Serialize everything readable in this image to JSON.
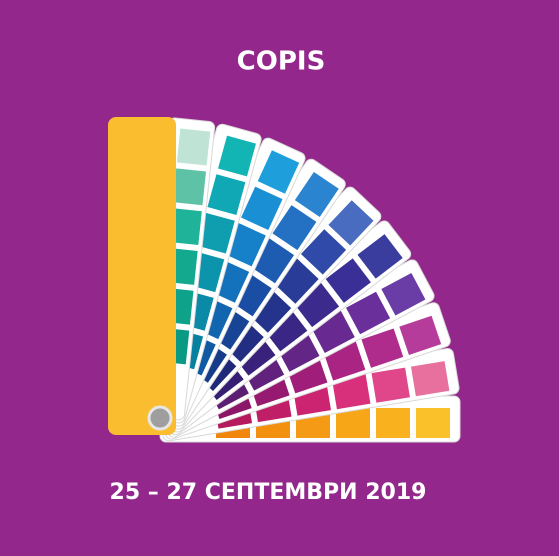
{
  "header": {
    "title": "COPIS"
  },
  "footer": {
    "dates": "25 – 27 СЕПТЕМВРИ 2019"
  }
}
